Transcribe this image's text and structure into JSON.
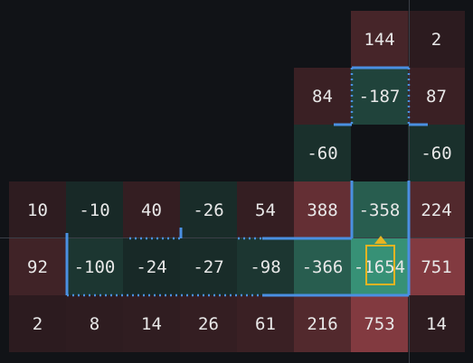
{
  "grid": {
    "cells": [
      {
        "row": 0,
        "col": 6,
        "value": "144",
        "tone": "red",
        "level": 0.3
      },
      {
        "row": 0,
        "col": 7,
        "value": "2",
        "tone": "red",
        "level": 0.08
      },
      {
        "row": 1,
        "col": 5,
        "value": "84",
        "tone": "red",
        "level": 0.2
      },
      {
        "row": 1,
        "col": 6,
        "value": "-187",
        "tone": "green",
        "level": 0.3
      },
      {
        "row": 1,
        "col": 7,
        "value": "87",
        "tone": "red",
        "level": 0.2
      },
      {
        "row": 2,
        "col": 5,
        "value": "-60",
        "tone": "green",
        "level": 0.15
      },
      {
        "row": 2,
        "col": 7,
        "value": "-60",
        "tone": "green",
        "level": 0.15
      },
      {
        "row": 3,
        "col": 0,
        "value": "10",
        "tone": "red",
        "level": 0.1
      },
      {
        "row": 3,
        "col": 1,
        "value": "-10",
        "tone": "green",
        "level": 0.1
      },
      {
        "row": 3,
        "col": 2,
        "value": "40",
        "tone": "red",
        "level": 0.15
      },
      {
        "row": 3,
        "col": 3,
        "value": "-26",
        "tone": "green",
        "level": 0.12
      },
      {
        "row": 3,
        "col": 4,
        "value": "54",
        "tone": "red",
        "level": 0.15
      },
      {
        "row": 3,
        "col": 5,
        "value": "388",
        "tone": "red",
        "level": 0.55
      },
      {
        "row": 3,
        "col": 6,
        "value": "-358",
        "tone": "green",
        "level": 0.5
      },
      {
        "row": 3,
        "col": 7,
        "value": "224",
        "tone": "red",
        "level": 0.4
      },
      {
        "row": 4,
        "col": 0,
        "value": "92",
        "tone": "red",
        "level": 0.25
      },
      {
        "row": 4,
        "col": 1,
        "value": "-100",
        "tone": "green",
        "level": 0.2
      },
      {
        "row": 4,
        "col": 2,
        "value": "-24",
        "tone": "green",
        "level": 0.1
      },
      {
        "row": 4,
        "col": 3,
        "value": "-27",
        "tone": "green",
        "level": 0.12
      },
      {
        "row": 4,
        "col": 4,
        "value": "-98",
        "tone": "green",
        "level": 0.2
      },
      {
        "row": 4,
        "col": 5,
        "value": "-366",
        "tone": "green",
        "level": 0.5
      },
      {
        "row": 4,
        "col": 6,
        "value": "-1654",
        "tone": "green",
        "level": 0.9
      },
      {
        "row": 4,
        "col": 7,
        "value": "751",
        "tone": "red",
        "level": 0.8
      },
      {
        "row": 5,
        "col": 0,
        "value": "2",
        "tone": "red",
        "level": 0.08
      },
      {
        "row": 5,
        "col": 1,
        "value": "8",
        "tone": "red",
        "level": 0.1
      },
      {
        "row": 5,
        "col": 2,
        "value": "14",
        "tone": "red",
        "level": 0.12
      },
      {
        "row": 5,
        "col": 3,
        "value": "26",
        "tone": "red",
        "level": 0.15
      },
      {
        "row": 5,
        "col": 4,
        "value": "61",
        "tone": "red",
        "level": 0.2
      },
      {
        "row": 5,
        "col": 5,
        "value": "216",
        "tone": "red",
        "level": 0.4
      },
      {
        "row": 5,
        "col": 6,
        "value": "753",
        "tone": "red",
        "level": 0.8
      },
      {
        "row": 5,
        "col": 7,
        "value": "14",
        "tone": "red",
        "level": 0.1
      }
    ],
    "colors": {
      "background": "#111317",
      "red_low": "#22181b",
      "red_high": "#9a4249",
      "green_low": "#141c1d",
      "green_high": "#3b9e80",
      "accent": "#4a90e2",
      "selection": "#e6b422"
    },
    "selected_value": "-1654"
  }
}
